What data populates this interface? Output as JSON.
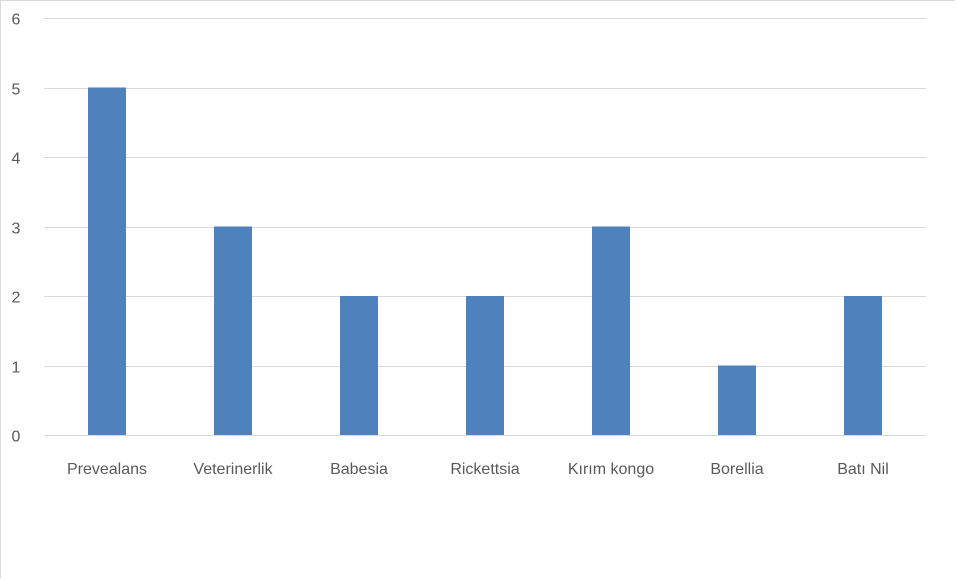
{
  "chart_data": {
    "type": "bar",
    "categories": [
      "Prevealans",
      "Veterinerlik",
      "Babesia",
      "Rickettsia",
      "Kırım kongo",
      "Borellia",
      "Batı Nil"
    ],
    "values": [
      5,
      3,
      2,
      2,
      3,
      1,
      2
    ],
    "title": "",
    "xlabel": "",
    "ylabel": "",
    "ylim": [
      0,
      6
    ],
    "yticks": [
      "0",
      "1",
      "2",
      "3",
      "4",
      "5",
      "6"
    ],
    "grid": true,
    "legend": "none",
    "bar_color": "#4f81bd",
    "grid_color": "#d9d9d9",
    "label_color": "#595959"
  }
}
